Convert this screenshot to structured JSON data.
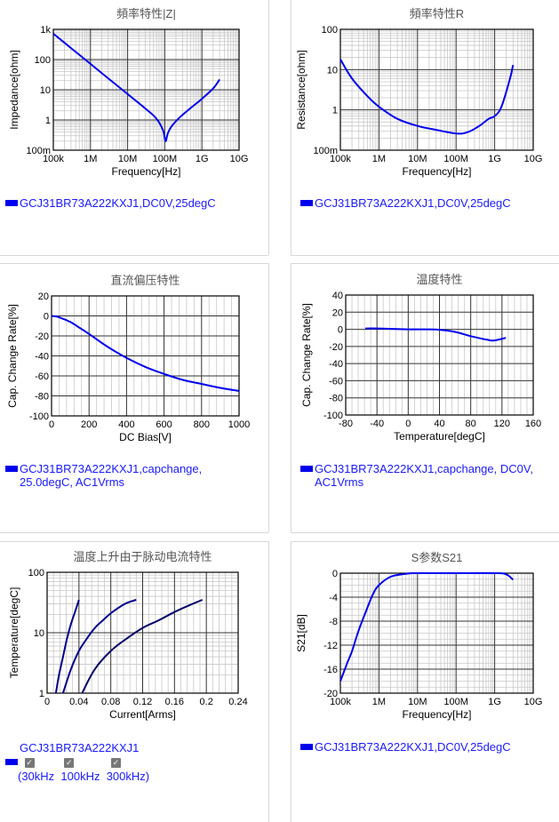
{
  "charts": {
    "impedance": {
      "title": "頻率特性|Z|",
      "xlabel": "Frequency[Hz]",
      "ylabel": "Impedance[ohm]",
      "xticks": [
        "100k",
        "1M",
        "10M",
        "100M",
        "1G",
        "10G"
      ],
      "yticks": [
        "100m",
        "1",
        "10",
        "100",
        "1k"
      ],
      "legend": "GCJ31BR73A222KXJ1,DC0V,25degC"
    },
    "resistance": {
      "title": "頻率特性R",
      "xlabel": "Frequency[Hz]",
      "ylabel": "Resistance[ohm]",
      "xticks": [
        "100k",
        "1M",
        "10M",
        "100M",
        "1G",
        "10G"
      ],
      "yticks": [
        "100m",
        "1",
        "10",
        "100"
      ],
      "legend": "GCJ31BR73A222KXJ1,DC0V,25degC"
    },
    "dcbias": {
      "title": "直流偏压特性",
      "xlabel": "DC Bias[V]",
      "ylabel": "Cap. Change Rate[%]",
      "xticks": [
        "0",
        "200",
        "400",
        "600",
        "800",
        "1000"
      ],
      "yticks": [
        "-100",
        "-80",
        "-60",
        "-40",
        "-20",
        "0",
        "20"
      ],
      "legend_line1": "GCJ31BR73A222KXJ1,capchange,",
      "legend_line2": "25.0degC, AC1Vrms"
    },
    "temperature": {
      "title": "温度特性",
      "xlabel": "Temperature[degC]",
      "ylabel": "Cap. Change Rate[%]",
      "xticks": [
        "-80",
        "-40",
        "0",
        "40",
        "80",
        "120",
        "160"
      ],
      "yticks": [
        "-100",
        "-80",
        "-60",
        "-40",
        "-20",
        "0",
        "20",
        "40"
      ],
      "legend_line1": "GCJ31BR73A222KXJ1,capchange, DC0V,",
      "legend_line2": "AC1Vrms"
    },
    "ripple": {
      "title": "温度上升由于脉动电流特性",
      "xlabel": "Current[Arms]",
      "ylabel": "Temperature[degC]",
      "xticks": [
        "0",
        "0.04",
        "0.08",
        "0.12",
        "0.16",
        "0.2",
        "0.24"
      ],
      "yticks": [
        "1",
        "10",
        "100"
      ],
      "legend_name": "GCJ31BR73A222KXJ1",
      "freq_labels": "(30kHz  100kHz  300kHz)",
      "checkbox_mark": "✓"
    },
    "s21": {
      "title": "S参数S21",
      "xlabel": "Frequency[Hz]",
      "ylabel": "S21[dB]",
      "xticks": [
        "100k",
        "1M",
        "10M",
        "100M",
        "1G",
        "10G"
      ],
      "yticks": [
        "-20",
        "-16",
        "-12",
        "-8",
        "-4",
        "0"
      ],
      "legend": "GCJ31BR73A222KXJ1,DC0V,25degC"
    }
  },
  "chart_data": [
    {
      "type": "line",
      "title": "頻率特性|Z|",
      "xlabel": "Frequency[Hz]",
      "ylabel": "Impedance[ohm]",
      "xscale": "log",
      "yscale": "log",
      "xlim": [
        100000,
        10000000000
      ],
      "ylim": [
        0.1,
        1000
      ],
      "series": [
        {
          "name": "GCJ31BR73A222KXJ1,DC0V,25degC",
          "x": [
            100000,
            300000,
            1000000,
            3000000,
            10000000,
            30000000,
            60000000,
            90000000,
            105000000,
            120000000,
            150000000,
            250000000,
            500000000,
            1000000000,
            2000000000,
            3000000000
          ],
          "y": [
            720,
            240,
            72,
            24,
            7.2,
            2.4,
            1.1,
            0.45,
            0.2,
            0.35,
            0.6,
            1.2,
            2.5,
            5,
            11,
            22
          ]
        }
      ]
    },
    {
      "type": "line",
      "title": "頻率特性R",
      "xlabel": "Frequency[Hz]",
      "ylabel": "Resistance[ohm]",
      "xscale": "log",
      "yscale": "log",
      "xlim": [
        100000,
        10000000000
      ],
      "ylim": [
        0.1,
        100
      ],
      "series": [
        {
          "name": "GCJ31BR73A222KXJ1,DC0V,25degC",
          "x": [
            100000,
            200000,
            500000,
            1000000,
            3000000,
            10000000,
            30000000,
            100000000,
            200000000,
            400000000,
            700000000,
            1000000000,
            1500000000,
            2500000000,
            3000000000
          ],
          "y": [
            18,
            6,
            2.2,
            1.2,
            0.6,
            0.4,
            0.32,
            0.26,
            0.28,
            0.4,
            0.6,
            0.7,
            1.2,
            6,
            13
          ]
        }
      ]
    },
    {
      "type": "line",
      "title": "直流偏压特性",
      "xlabel": "DC Bias[V]",
      "ylabel": "Cap. Change Rate[%]",
      "xlim": [
        0,
        1000
      ],
      "ylim": [
        -100,
        20
      ],
      "series": [
        {
          "name": "GCJ31BR73A222KXJ1,capchange,25.0degC, AC1Vrms",
          "x": [
            0,
            25,
            50,
            100,
            150,
            200,
            300,
            400,
            500,
            600,
            700,
            800,
            900,
            1000
          ],
          "y": [
            0,
            -0.5,
            -2,
            -6,
            -12,
            -18,
            -31,
            -42,
            -51,
            -58,
            -64,
            -68,
            -72,
            -75
          ]
        }
      ]
    },
    {
      "type": "line",
      "title": "温度特性",
      "xlabel": "Temperature[degC]",
      "ylabel": "Cap. Change Rate[%]",
      "xlim": [
        -80,
        160
      ],
      "ylim": [
        -100,
        40
      ],
      "series": [
        {
          "name": "GCJ31BR73A222KXJ1,capchange, DC0V, AC1Vrms",
          "x": [
            -55,
            -40,
            -20,
            0,
            20,
            40,
            60,
            80,
            100,
            110,
            125
          ],
          "y": [
            1,
            1,
            0.5,
            0,
            0,
            -0.5,
            -3,
            -8,
            -12,
            -13,
            -10
          ]
        }
      ]
    },
    {
      "type": "line",
      "title": "温度上升由于脉动电流特性",
      "xlabel": "Current[Arms]",
      "ylabel": "Temperature[degC]",
      "yscale": "log",
      "xlim": [
        0,
        0.24
      ],
      "ylim": [
        1,
        100
      ],
      "series": [
        {
          "name": "30kHz",
          "x": [
            0.011,
            0.015,
            0.02,
            0.025,
            0.03,
            0.035,
            0.04
          ],
          "y": [
            1,
            2,
            4,
            8,
            14,
            22,
            35
          ]
        },
        {
          "name": "100kHz",
          "x": [
            0.02,
            0.03,
            0.04,
            0.05,
            0.06,
            0.07,
            0.08,
            0.09,
            0.1,
            0.112
          ],
          "y": [
            1,
            2.5,
            5,
            8,
            12,
            16,
            21,
            26,
            31,
            35
          ]
        },
        {
          "name": "300kHz",
          "x": [
            0.044,
            0.06,
            0.08,
            0.1,
            0.12,
            0.14,
            0.16,
            0.18,
            0.195
          ],
          "y": [
            1,
            2.5,
            5,
            8,
            12,
            16,
            22,
            29,
            35
          ]
        }
      ]
    },
    {
      "type": "line",
      "title": "S参数S21",
      "xlabel": "Frequency[Hz]",
      "ylabel": "S21[dB]",
      "xscale": "log",
      "xlim": [
        100000,
        10000000000
      ],
      "ylim": [
        -20,
        0
      ],
      "series": [
        {
          "name": "GCJ31BR73A222KXJ1,DC0V,25degC",
          "x": [
            100000,
            150000,
            200000,
            300000,
            500000,
            700000,
            1000000,
            2000000,
            5000000,
            10000000,
            100000000,
            1000000000,
            2000000000,
            3000000000
          ],
          "y": [
            -18,
            -15,
            -13,
            -9.5,
            -5.8,
            -3.5,
            -2,
            -0.6,
            -0.1,
            0,
            0,
            0,
            -0.2,
            -1.1
          ]
        }
      ]
    }
  ],
  "colors": {
    "series_primary": "#0000ee",
    "series_dark": "#000066",
    "legend_text": "#1a1aff",
    "grid_major": "#333333",
    "grid_minor": "#c8c8c8"
  }
}
